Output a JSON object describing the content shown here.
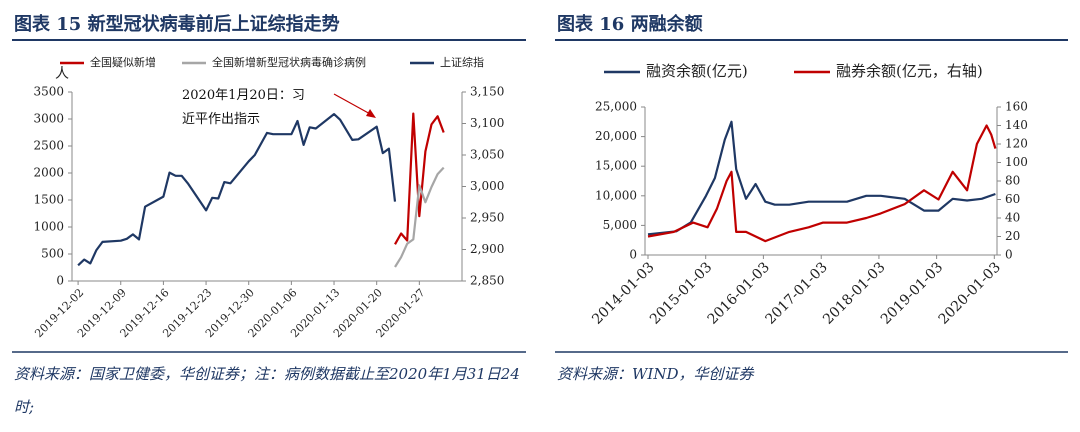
{
  "chart_data": [
    {
      "type": "line",
      "title": "图表 15  新型冠状病毒前后上证综指走势",
      "ylabel": "人",
      "annotation": "2020年1月20日：习近平作出指示",
      "source": "资料来源：国家卫健委，华创证券；注：病例数据截止至2020年1月31日24时;",
      "xlim": [
        "2019-12-01",
        "2020-02-03"
      ],
      "xticks": [
        "2019-12-02",
        "2019-12-09",
        "2019-12-16",
        "2019-12-23",
        "2019-12-30",
        "2020-01-06",
        "2020-01-13",
        "2020-01-20",
        "2020-01-27"
      ],
      "ylim": [
        0,
        3500
      ],
      "yticks": [
        0,
        500,
        1000,
        1500,
        2000,
        2500,
        3000,
        3500
      ],
      "y2lim": [
        2850,
        3150
      ],
      "y2ticks": [
        {
          "value": 2850,
          "label": "2,850"
        },
        {
          "value": 2900,
          "label": "2,900"
        },
        {
          "value": 2950,
          "label": "2,950"
        },
        {
          "value": 3000,
          "label": "3,000"
        },
        {
          "value": 3050,
          "label": "3,050"
        },
        {
          "value": 3100,
          "label": "3,100"
        },
        {
          "value": 3150,
          "label": "3,150"
        }
      ],
      "series": [
        {
          "name": "全国疑似新增",
          "color": "#c00000",
          "x": [
            "2020-01-23",
            "2020-01-24",
            "2020-01-25",
            "2020-01-26",
            "2020-01-27",
            "2020-01-28",
            "2020-01-29",
            "2020-01-30",
            "2020-01-31"
          ],
          "values": [
            680,
            880,
            750,
            3100,
            1200,
            2400,
            2900,
            3050,
            2750
          ]
        },
        {
          "name": "全国新增新型冠状病毒确诊病例",
          "color": "#a6a6a6",
          "x": [
            "2020-01-23",
            "2020-01-24",
            "2020-01-25",
            "2020-01-26",
            "2020-01-27",
            "2020-01-28",
            "2020-01-29",
            "2020-01-30",
            "2020-01-31"
          ],
          "values": [
            260,
            440,
            690,
            770,
            1770,
            1460,
            1740,
            1980,
            2100
          ]
        },
        {
          "name": "上证综指",
          "color": "#1f3864",
          "axis": "y2",
          "x": [
            "2019-12-02",
            "2019-12-03",
            "2019-12-04",
            "2019-12-05",
            "2019-12-06",
            "2019-12-09",
            "2019-12-10",
            "2019-12-11",
            "2019-12-12",
            "2019-12-13",
            "2019-12-16",
            "2019-12-17",
            "2019-12-18",
            "2019-12-19",
            "2019-12-20",
            "2019-12-23",
            "2019-12-24",
            "2019-12-25",
            "2019-12-26",
            "2019-12-27",
            "2019-12-30",
            "2019-12-31",
            "2020-01-02",
            "2020-01-03",
            "2020-01-06",
            "2020-01-07",
            "2020-01-08",
            "2020-01-09",
            "2020-01-10",
            "2020-01-13",
            "2020-01-14",
            "2020-01-15",
            "2020-01-16",
            "2020-01-17",
            "2020-01-20",
            "2020-01-21",
            "2020-01-22",
            "2020-01-23"
          ],
          "values": [
            2875,
            2884,
            2878,
            2899,
            2912,
            2914,
            2917,
            2924,
            2916,
            2968,
            2984,
            3022,
            3017,
            3017,
            3005,
            2962,
            2982,
            2981,
            3007,
            3005,
            3040,
            3050,
            3085,
            3083,
            3083,
            3104,
            3066,
            3094,
            3092,
            3115,
            3106,
            3090,
            3074,
            3075,
            3095,
            3053,
            3060,
            2976
          ]
        }
      ]
    },
    {
      "type": "line",
      "title": "图表 16  两融余额",
      "source": "资料来源：WIND，华创证券",
      "xlim": [
        "2013-12-15",
        "2020-01-20"
      ],
      "xticks": [
        "2014-01-03",
        "2015-01-03",
        "2016-01-03",
        "2017-01-03",
        "2018-01-03",
        "2019-01-03",
        "2020-01-03"
      ],
      "ylim": [
        0,
        25000
      ],
      "yticks": [
        0,
        {
          "value": 5000,
          "label": "5,000"
        },
        {
          "value": 10000,
          "label": "10,000"
        },
        {
          "value": 15000,
          "label": "15,000"
        },
        {
          "value": 20000,
          "label": "20,000"
        },
        {
          "value": 25000,
          "label": "25,000"
        }
      ],
      "y2lim": [
        0,
        160
      ],
      "y2ticks": [
        0,
        20,
        40,
        60,
        80,
        100,
        120,
        140,
        160
      ],
      "series": [
        {
          "name": "融资余额(亿元)",
          "color": "#1f3864",
          "x": [
            "2014-01-03",
            "2014-07-01",
            "2014-10-01",
            "2015-01-05",
            "2015-03-02",
            "2015-05-04",
            "2015-06-15",
            "2015-07-15",
            "2015-09-15",
            "2015-11-15",
            "2016-01-15",
            "2016-03-15",
            "2016-06-15",
            "2016-10-15",
            "2017-01-15",
            "2017-06-15",
            "2017-10-15",
            "2018-01-15",
            "2018-06-15",
            "2018-10-15",
            "2019-01-15",
            "2019-04-15",
            "2019-07-15",
            "2019-10-15",
            "2020-01-10"
          ],
          "values": [
            3500,
            4000,
            5500,
            10000,
            13000,
            19500,
            22500,
            14500,
            9500,
            12000,
            9000,
            8500,
            8500,
            9000,
            9000,
            9000,
            10000,
            10000,
            9500,
            7500,
            7500,
            9500,
            9200,
            9500,
            10300
          ]
        },
        {
          "name": "融券余额(亿元，右轴)",
          "color": "#c00000",
          "axis": "y2",
          "x": [
            "2014-01-03",
            "2014-06-15",
            "2014-10-15",
            "2015-01-15",
            "2015-03-15",
            "2015-05-15",
            "2015-06-15",
            "2015-07-15",
            "2015-09-15",
            "2016-01-15",
            "2016-06-15",
            "2016-10-15",
            "2017-01-15",
            "2017-06-15",
            "2017-10-15",
            "2018-01-15",
            "2018-06-15",
            "2018-10-15",
            "2019-01-15",
            "2019-04-15",
            "2019-07-15",
            "2019-09-15",
            "2019-11-15",
            "2019-12-15",
            "2020-01-10"
          ],
          "values": [
            20,
            25,
            35,
            30,
            50,
            80,
            90,
            25,
            25,
            15,
            25,
            30,
            35,
            35,
            40,
            45,
            55,
            70,
            60,
            90,
            70,
            120,
            140,
            130,
            115
          ]
        }
      ]
    }
  ]
}
